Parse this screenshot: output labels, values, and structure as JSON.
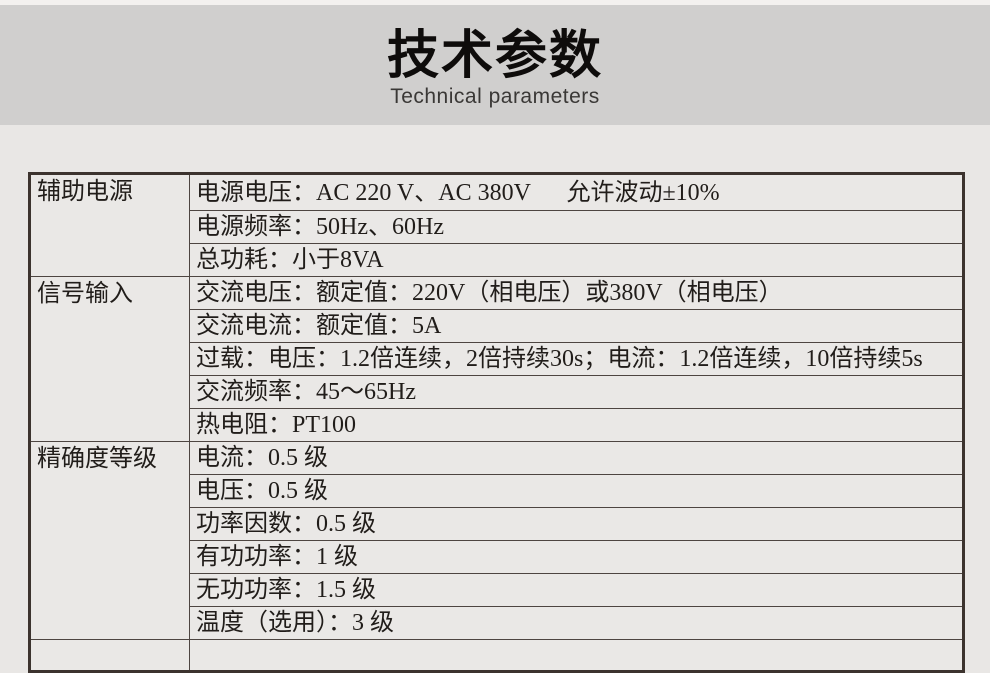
{
  "header": {
    "title": "技术参数",
    "subtitle": "Technical parameters"
  },
  "theme": {
    "band_color": "#d0cfce",
    "page_color": "#e9e7e5",
    "cell_color": "#eae8e6",
    "border_color": "#3c332e",
    "text_color": "#211d1a"
  },
  "table": {
    "groups": [
      {
        "id": "aux-power",
        "label": "辅助电源",
        "rows": [
          "电源电压：AC 220 V、AC 380V　  允许波动±10%",
          "电源频率：50Hz、60Hz",
          "总功耗：小于8VA"
        ]
      },
      {
        "id": "signal-input",
        "label": "信号输入",
        "rows": [
          "交流电压：额定值：220V（相电压）或380V（相电压）",
          "交流电流：额定值：5A",
          "过载：电压：1.2倍连续，2倍持续30s；电流：1.2倍连续，10倍持续5s",
          "交流频率：45～65Hz",
          "热电阻：PT100"
        ]
      },
      {
        "id": "accuracy-class",
        "label": "精确度等级",
        "rows": [
          "电流：0.5 级",
          "电压：0.5 级",
          "功率因数：0.5 级",
          "有功功率：1 级",
          "无功功率：1.5 级",
          "温度（选用）：3 级"
        ]
      }
    ]
  }
}
